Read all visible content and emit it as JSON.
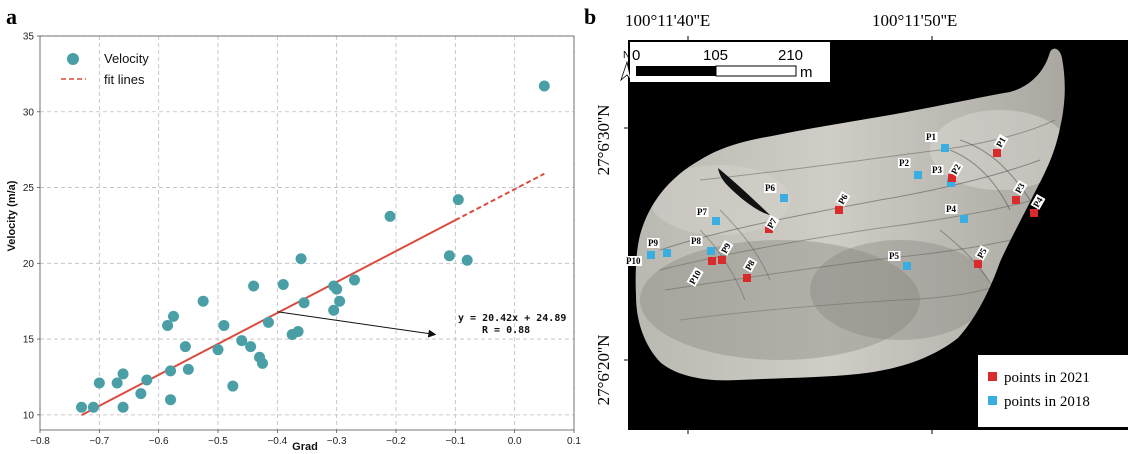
{
  "panel_a_label": "a",
  "panel_b_label": "b",
  "chart_data": [
    {
      "type": "scatter",
      "xlabel": "Grad",
      "ylabel": "Velocity (m/a)",
      "xlim": [
        -0.8,
        0.1
      ],
      "ylim": [
        9,
        35
      ],
      "x_ticks": [
        -0.8,
        -0.7,
        -0.6,
        -0.5,
        -0.4,
        -0.3,
        -0.2,
        -0.1,
        0.0,
        0.1
      ],
      "x_tick_labels": [
        "−0.8",
        "−0.7",
        "−0.6",
        "−0.5",
        "−0.4",
        "−0.3",
        "−0.2",
        "−0.1",
        "0.0",
        "0.1"
      ],
      "y_ticks": [
        10,
        15,
        20,
        25,
        30,
        35
      ],
      "y_tick_labels": [
        "10",
        "15",
        "20",
        "25",
        "30",
        "35"
      ],
      "grid": true,
      "legend_placement": "top-left",
      "legend": [
        "Velocity",
        "fit lines"
      ],
      "series": [
        {
          "name": "Velocity",
          "color": "#4a9fa6",
          "points": [
            [
              -0.73,
              10.5
            ],
            [
              -0.71,
              10.5
            ],
            [
              -0.7,
              12.1
            ],
            [
              -0.67,
              12.1
            ],
            [
              -0.66,
              12.7
            ],
            [
              -0.66,
              10.5
            ],
            [
              -0.63,
              11.4
            ],
            [
              -0.62,
              12.3
            ],
            [
              -0.585,
              15.9
            ],
            [
              -0.58,
              12.9
            ],
            [
              -0.575,
              16.5
            ],
            [
              -0.58,
              11.0
            ],
            [
              -0.555,
              14.5
            ],
            [
              -0.55,
              13.0
            ],
            [
              -0.525,
              17.5
            ],
            [
              -0.5,
              14.3
            ],
            [
              -0.49,
              15.9
            ],
            [
              -0.475,
              11.9
            ],
            [
              -0.46,
              14.9
            ],
            [
              -0.445,
              14.5
            ],
            [
              -0.44,
              18.5
            ],
            [
              -0.43,
              13.8
            ],
            [
              -0.425,
              13.4
            ],
            [
              -0.415,
              16.1
            ],
            [
              -0.39,
              18.6
            ],
            [
              -0.375,
              15.3
            ],
            [
              -0.365,
              15.5
            ],
            [
              -0.36,
              20.3
            ],
            [
              -0.355,
              17.4
            ],
            [
              -0.305,
              16.9
            ],
            [
              -0.305,
              18.5
            ],
            [
              -0.3,
              18.3
            ],
            [
              -0.295,
              17.5
            ],
            [
              -0.27,
              18.9
            ],
            [
              -0.21,
              23.1
            ],
            [
              -0.11,
              20.5
            ],
            [
              -0.095,
              24.2
            ],
            [
              -0.08,
              20.2
            ],
            [
              0.05,
              31.7
            ]
          ]
        },
        {
          "name": "fit lines",
          "color": "#d94c3e",
          "fit": {
            "slope": 20.42,
            "intercept": 24.89,
            "x_solid": [
              -0.73,
              -0.1
            ],
            "x_dashed": [
              -0.1,
              0.05
            ]
          }
        }
      ],
      "annotation": {
        "text": "y = 20.42x + 24.89",
        "text2": "R = 0.88",
        "arrow_from": [
          -0.4,
          16.8
        ],
        "arrow_to": [
          -0.1,
          15.3
        ]
      }
    }
  ],
  "map": {
    "lon_labels": [
      "100°11'40''E",
      "100°11'50''E"
    ],
    "lat_labels": [
      "27°6'30''N",
      "27°6'20''N"
    ],
    "north_label": "N",
    "scale_labels": [
      "0",
      "105",
      "210"
    ],
    "scale_unit": "m",
    "legend": [
      {
        "label": "points in 2021",
        "color": "#d92b2b"
      },
      {
        "label": "points in 2018",
        "color": "#3aaee0"
      }
    ],
    "points_2021": [
      {
        "label": "P1"
      },
      {
        "label": "P2"
      },
      {
        "label": "P3"
      },
      {
        "label": "P4"
      },
      {
        "label": "P5"
      },
      {
        "label": "P6"
      },
      {
        "label": "P7"
      },
      {
        "label": "P8"
      },
      {
        "label": "P9"
      },
      {
        "label": "P10"
      }
    ],
    "points_2018": [
      {
        "label": "P1"
      },
      {
        "label": "P2"
      },
      {
        "label": "P3"
      },
      {
        "label": "P4"
      },
      {
        "label": "P5"
      },
      {
        "label": "P6"
      },
      {
        "label": "P7"
      },
      {
        "label": "P8"
      },
      {
        "label": "P9"
      },
      {
        "label": "P10"
      }
    ]
  }
}
